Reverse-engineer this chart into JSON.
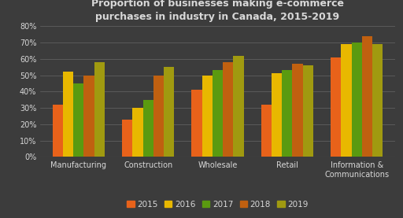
{
  "title": "Proportion of businesses making e-commerce\npurchases in industry in Canada, 2015-2019",
  "categories": [
    "Manufacturing",
    "Construction",
    "Wholesale",
    "Retail",
    "Information &\nCommunications"
  ],
  "years": [
    "2015",
    "2016",
    "2017",
    "2018",
    "2019"
  ],
  "values": {
    "2015": [
      32,
      23,
      41,
      32,
      61
    ],
    "2016": [
      52,
      30,
      50,
      51,
      69
    ],
    "2017": [
      45,
      35,
      53,
      53,
      70
    ],
    "2018": [
      50,
      50,
      58,
      57,
      74
    ],
    "2019": [
      58,
      55,
      62,
      56,
      69
    ]
  },
  "colors": {
    "2015": "#e8621a",
    "2016": "#e8b800",
    "2017": "#5a9a10",
    "2018": "#c06010",
    "2019": "#a09a10"
  },
  "background_color": "#3c3c3c",
  "text_color": "#d8d8d8",
  "grid_color": "#666666",
  "ylim": [
    0,
    80
  ],
  "yticks": [
    0,
    10,
    20,
    30,
    40,
    50,
    60,
    70,
    80
  ],
  "title_fontsize": 9.0,
  "tick_fontsize": 7.0,
  "legend_fontsize": 7.5,
  "bar_width": 0.15
}
